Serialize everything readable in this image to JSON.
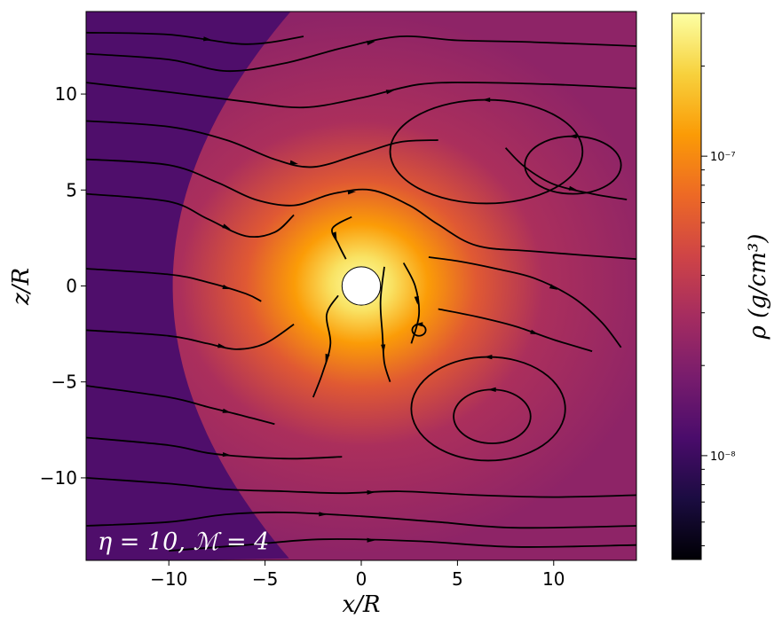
{
  "chart_data": {
    "type": "heatmap",
    "xlabel": "x/R",
    "ylabel": "z/R",
    "xlim": [
      -14.3,
      14.3
    ],
    "ylim": [
      -14.3,
      14.3
    ],
    "x_ticks": [
      -10,
      -5,
      0,
      5,
      10
    ],
    "x_tick_labels": [
      "−10",
      "−5",
      "0",
      "5",
      "10"
    ],
    "y_ticks": [
      10,
      5,
      0,
      -5,
      -10
    ],
    "y_tick_labels": [
      "10",
      "5",
      "0",
      "−5",
      "−10"
    ],
    "annotation": "η = 10, ℳ = 4",
    "obstacle_radius": 1,
    "colorbar": {
      "label": "ρ (g/cm³)",
      "scale": "log",
      "range": [
        4.5e-09,
        3e-07
      ],
      "ticks": [
        1e-08,
        1e-07
      ],
      "tick_labels": [
        "10⁻⁸",
        "10⁻⁷"
      ],
      "minor_ticks": [
        5e-09,
        6e-09,
        7e-09,
        8e-09,
        9e-09,
        2e-08,
        3e-08,
        4e-08,
        5e-08,
        6e-08,
        7e-08,
        8e-08,
        9e-08,
        2e-07,
        3e-07
      ],
      "colormap": [
        "#000004",
        "#1b0c41",
        "#4a0c6b",
        "#781c6d",
        "#a52c60",
        "#cf4446",
        "#ed6925",
        "#fb9b06",
        "#f7d13d",
        "#fcffa4"
      ]
    },
    "ambient_density": 1.2e-08,
    "shocked_density_near_obstacle": 3e-07,
    "shocked_density_far": 2.3e-08,
    "bow_shock_standoff": -9.8,
    "streamlines": [
      [
        [
          -14.3,
          13.2
        ],
        [
          -10,
          13.1
        ],
        [
          -6,
          12.6
        ],
        [
          -3,
          13.0
        ]
      ],
      [
        [
          -14.3,
          12.1
        ],
        [
          -10,
          11.8
        ],
        [
          -7,
          11.2
        ],
        [
          -4,
          11.6
        ],
        [
          -1,
          12.4
        ],
        [
          2,
          13.0
        ],
        [
          5,
          12.8
        ],
        [
          9,
          12.7
        ],
        [
          14.3,
          12.5
        ]
      ],
      [
        [
          -14.3,
          10.6
        ],
        [
          -10,
          10.1
        ],
        [
          -6,
          9.6
        ],
        [
          -3,
          9.3
        ],
        [
          0,
          9.8
        ],
        [
          3,
          10.5
        ],
        [
          6,
          10.6
        ],
        [
          10,
          10.5
        ],
        [
          14.3,
          10.3
        ]
      ],
      [
        [
          -14.3,
          8.6
        ],
        [
          -10,
          8.3
        ],
        [
          -7,
          7.6
        ],
        [
          -4.5,
          6.6
        ],
        [
          -2.5,
          6.2
        ],
        [
          0,
          6.9
        ],
        [
          2,
          7.5
        ],
        [
          4,
          7.6
        ]
      ],
      [
        [
          -14.3,
          6.6
        ],
        [
          -10,
          6.3
        ],
        [
          -7.5,
          5.4
        ],
        [
          -5.5,
          4.5
        ],
        [
          -3.5,
          4.2
        ],
        [
          -1.5,
          4.8
        ],
        [
          0.5,
          5.0
        ],
        [
          2.5,
          4.2
        ],
        [
          4,
          3.2
        ],
        [
          6,
          2.1
        ],
        [
          9,
          1.8
        ],
        [
          14.3,
          1.4
        ]
      ],
      [
        [
          -14.3,
          4.8
        ],
        [
          -10,
          4.4
        ],
        [
          -8,
          3.5
        ],
        [
          -6,
          2.6
        ],
        [
          -4.5,
          2.8
        ],
        [
          -3.5,
          3.7
        ]
      ],
      [
        [
          -14.3,
          0.9
        ],
        [
          -10,
          0.6
        ],
        [
          -8,
          0.2
        ],
        [
          -6,
          -0.4
        ],
        [
          -5.2,
          -0.8
        ]
      ],
      [
        [
          -14.3,
          -2.3
        ],
        [
          -10,
          -2.6
        ],
        [
          -8,
          -3.0
        ],
        [
          -6.5,
          -3.3
        ],
        [
          -5,
          -3.0
        ],
        [
          -3.5,
          -2.0
        ]
      ],
      [
        [
          -14.3,
          -5.2
        ],
        [
          -10,
          -5.8
        ],
        [
          -8,
          -6.3
        ],
        [
          -6,
          -6.8
        ],
        [
          -4.5,
          -7.2
        ]
      ],
      [
        [
          -14.3,
          -7.9
        ],
        [
          -10,
          -8.3
        ],
        [
          -8,
          -8.7
        ],
        [
          -6,
          -8.9
        ],
        [
          -3.5,
          -9.0
        ],
        [
          -1,
          -8.9
        ]
      ],
      [
        [
          -14.3,
          -10.0
        ],
        [
          -10,
          -10.3
        ],
        [
          -7,
          -10.6
        ],
        [
          -4,
          -10.7
        ],
        [
          -1,
          -10.8
        ],
        [
          2,
          -10.7
        ],
        [
          6,
          -10.9
        ],
        [
          10,
          -11.0
        ],
        [
          14.3,
          -10.9
        ]
      ],
      [
        [
          -14.3,
          -12.5
        ],
        [
          -10,
          -12.3
        ],
        [
          -7,
          -11.9
        ],
        [
          -4,
          -11.8
        ],
        [
          0,
          -12.0
        ],
        [
          4,
          -12.3
        ],
        [
          8,
          -12.6
        ],
        [
          14.3,
          -12.5
        ]
      ],
      [
        [
          -10,
          -13.8
        ],
        [
          -6,
          -13.5
        ],
        [
          -2,
          -13.2
        ],
        [
          3,
          -13.3
        ],
        [
          8,
          -13.6
        ],
        [
          14.3,
          -13.5
        ]
      ],
      [
        [
          3.5,
          1.5
        ],
        [
          5,
          1.3
        ],
        [
          7,
          0.9
        ],
        [
          9,
          0.4
        ],
        [
          11,
          -0.6
        ],
        [
          12.5,
          -1.9
        ],
        [
          13.5,
          -3.2
        ]
      ],
      [
        [
          4,
          -1.2
        ],
        [
          6,
          -1.6
        ],
        [
          8,
          -2.1
        ],
        [
          10,
          -2.8
        ],
        [
          12,
          -3.4
        ]
      ],
      [
        [
          7.5,
          7.2
        ],
        [
          8.5,
          6.2
        ],
        [
          10,
          5.3
        ],
        [
          12,
          4.8
        ],
        [
          13.8,
          4.5
        ]
      ],
      [
        [
          -0.5,
          3.6
        ],
        [
          -1.5,
          3.0
        ],
        [
          -1.2,
          2.2
        ],
        [
          -0.8,
          1.4
        ]
      ],
      [
        [
          -1.2,
          -0.5
        ],
        [
          -1.8,
          -1.5
        ],
        [
          -1.6,
          -3.0
        ],
        [
          -2.0,
          -4.5
        ],
        [
          -2.5,
          -5.8
        ]
      ],
      [
        [
          1.2,
          1.0
        ],
        [
          1.0,
          -0.8
        ],
        [
          1.1,
          -2.5
        ],
        [
          1.2,
          -4.0
        ],
        [
          1.5,
          -5.0
        ]
      ],
      [
        [
          2.2,
          1.2
        ],
        [
          2.8,
          0.0
        ],
        [
          3.0,
          -1.5
        ],
        [
          2.6,
          -3.0
        ]
      ]
    ],
    "closed_loops": [
      {
        "cx": 6.5,
        "cy": 7.0,
        "rx": 5.0,
        "ry": 2.7
      },
      {
        "cx": 11.0,
        "cy": 6.3,
        "rx": 2.5,
        "ry": 1.5
      },
      {
        "cx": 6.6,
        "cy": -6.4,
        "rx": 4.0,
        "ry": 2.7
      },
      {
        "cx": 6.8,
        "cy": -6.8,
        "rx": 2.0,
        "ry": 1.4
      },
      {
        "cx": 3.0,
        "cy": -2.3,
        "rx": 0.35,
        "ry": 0.3
      }
    ]
  }
}
